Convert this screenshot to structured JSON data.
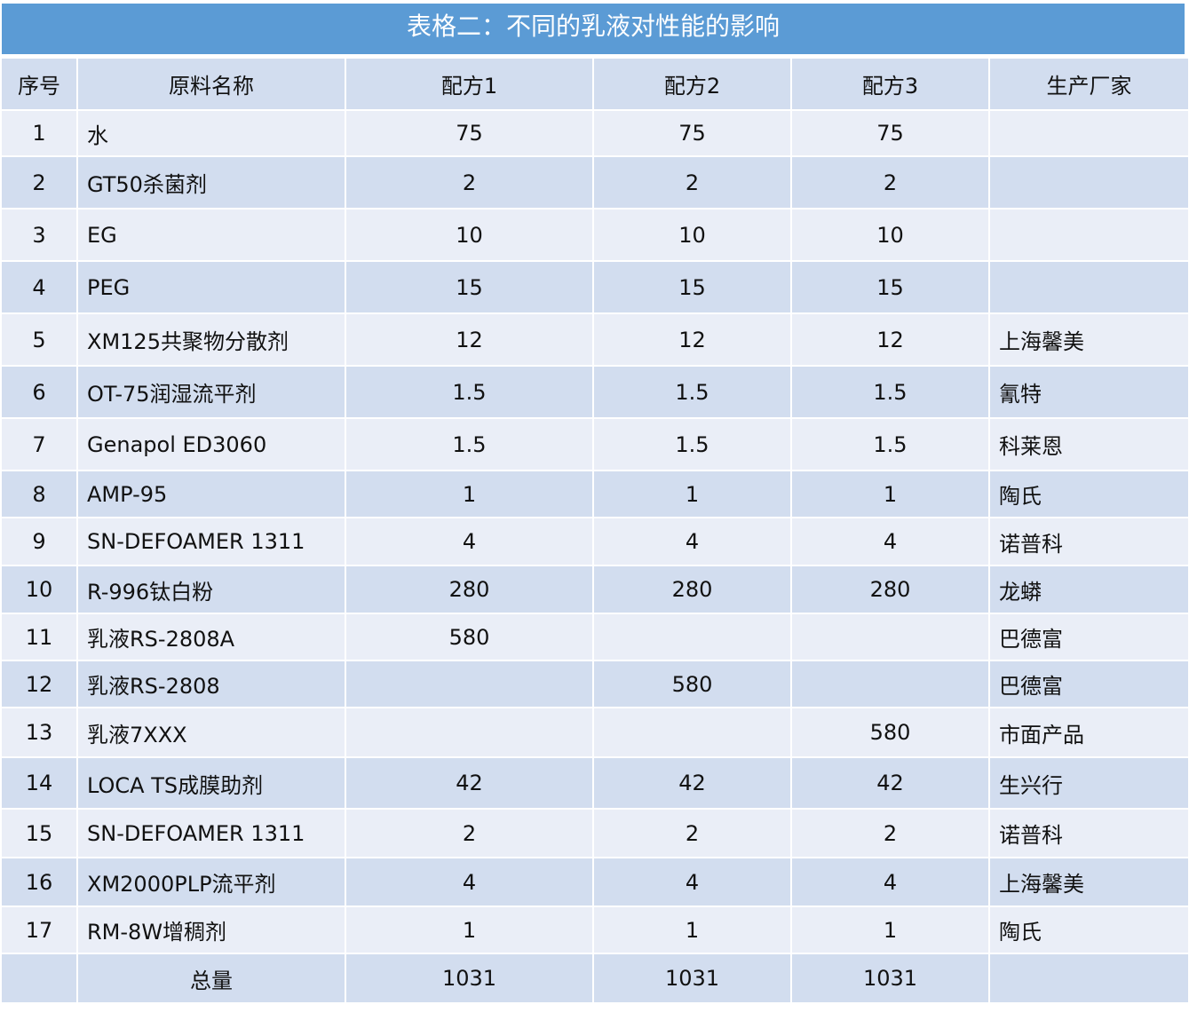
{
  "title": "表格二：不同的乳液对性能的影响",
  "headers": [
    "序号",
    "原料名称",
    "配方1",
    "配方2",
    "配方3",
    "生产厂家"
  ],
  "rows": [
    [
      "1",
      "水",
      "75",
      "75",
      "75",
      ""
    ],
    [
      "2",
      "GT50杀菌剂",
      "2",
      "2",
      "2",
      ""
    ],
    [
      "3",
      "EG",
      "10",
      "10",
      "10",
      ""
    ],
    [
      "4",
      "PEG",
      "15",
      "15",
      "15",
      ""
    ],
    [
      "5",
      "XM125共聚物分散剂",
      "12",
      "12",
      "12",
      "上海馨美"
    ],
    [
      "6",
      "OT-75润湿流平剂",
      "1.5",
      "1.5",
      "1.5",
      "氰特"
    ],
    [
      "7",
      "Genapol ED3060",
      "1.5",
      "1.5",
      "1.5",
      "科莱恩"
    ],
    [
      "8",
      "AMP-95",
      "1",
      "1",
      "1",
      "陶氏"
    ],
    [
      "9",
      "SN-DEFOAMER 1311",
      "4",
      "4",
      "4",
      "诺普科"
    ],
    [
      "10",
      "R-996钛白粉",
      "280",
      "280",
      "280",
      "龙蟒"
    ],
    [
      "11",
      "乳液RS-2808A",
      "580",
      "",
      "",
      "巴德富"
    ],
    [
      "12",
      "乳液RS-2808",
      "",
      "580",
      "",
      "巴德富"
    ],
    [
      "13",
      "乳液7XXX",
      "",
      "",
      "580",
      "市面产品"
    ],
    [
      "14",
      "LOCA TS成膜助剂",
      "42",
      "42",
      "42",
      "生兴行"
    ],
    [
      "15",
      "SN-DEFOAMER 1311",
      "2",
      "2",
      "2",
      "诺普科"
    ],
    [
      "16",
      "XM2000PLP流平剂",
      "4",
      "4",
      "4",
      "上海馨美"
    ],
    [
      "17",
      "RM-8W增稠剂",
      "1",
      "1",
      "1",
      "陶氏"
    ]
  ],
  "total": [
    "",
    "总量",
    "1031",
    "1031",
    "1031",
    ""
  ]
}
